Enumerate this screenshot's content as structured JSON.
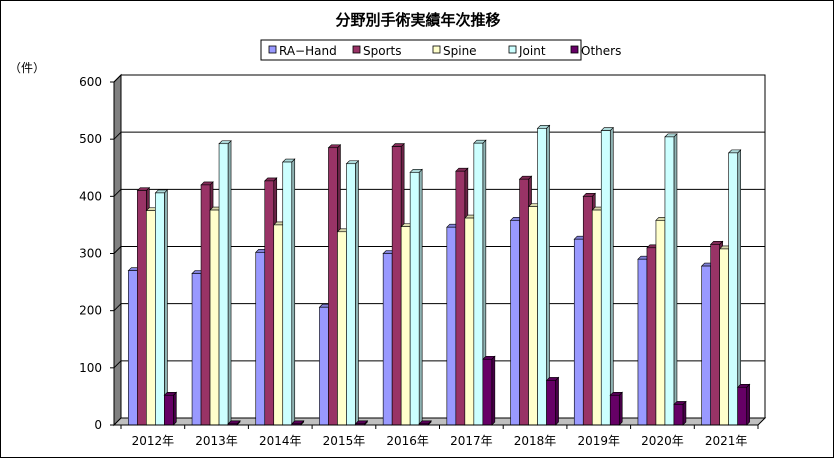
{
  "chart_data": {
    "type": "bar",
    "title": "分野別手術実績年次推移",
    "ylabel": "（件）",
    "xlabel": "",
    "categories": [
      "2012年",
      "2013年",
      "2014年",
      "2015年",
      "2016年",
      "2017年",
      "2018年",
      "2019年",
      "2020年",
      "2021年"
    ],
    "yticks": [
      "0",
      "100",
      "200",
      "300",
      "400",
      "500",
      "600"
    ],
    "ylim": [
      0,
      600
    ],
    "grid": true,
    "legend_position": "top",
    "series": [
      {
        "name": "RA−Hand",
        "color": "#9999FF",
        "values": [
          270,
          265,
          302,
          206,
          300,
          346,
          358,
          325,
          290,
          278
        ]
      },
      {
        "name": "Sports",
        "color": "#993366",
        "values": [
          410,
          420,
          427,
          485,
          487,
          444,
          430,
          400,
          310,
          316
        ]
      },
      {
        "name": "Spine",
        "color": "#FFFFCC",
        "values": [
          375,
          376,
          350,
          338,
          347,
          362,
          382,
          376,
          358,
          308
        ]
      },
      {
        "name": "Joint",
        "color": "#CCFFFF",
        "values": [
          406,
          492,
          460,
          457,
          442,
          493,
          519,
          515,
          504,
          476
        ]
      },
      {
        "name": "Others",
        "color": "#660066",
        "values": [
          52,
          2,
          2,
          2,
          2,
          115,
          78,
          52,
          36,
          66
        ]
      }
    ]
  }
}
